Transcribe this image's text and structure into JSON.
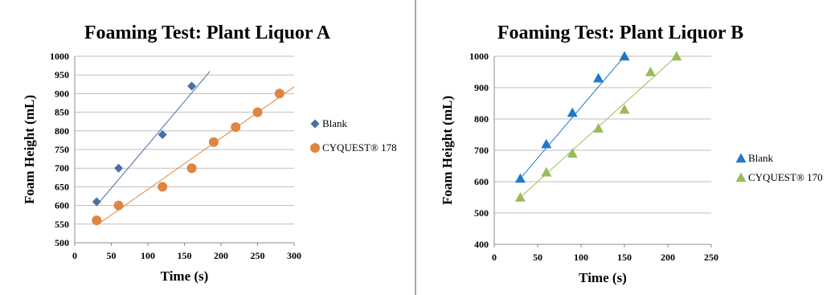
{
  "colors": {
    "blank_a": "#4a6fa5",
    "cyquest_a": "#e0853f",
    "blank_b": "#1f78c8",
    "cyquest_b": "#9bbb59",
    "grid": "#bfbfbf",
    "divider": "#a6a6a6"
  },
  "chart_data": [
    {
      "type": "scatter",
      "title": "Foaming Test: Plant Liquor A",
      "xlabel": "Time  (s)",
      "ylabel": "Foam Height (mL)",
      "xlim": [
        0,
        300
      ],
      "ylim": [
        500,
        1000
      ],
      "x_ticks": [
        0,
        50,
        100,
        150,
        200,
        250,
        300
      ],
      "y_ticks": [
        500,
        550,
        600,
        650,
        700,
        750,
        800,
        850,
        900,
        950,
        1000
      ],
      "grid": "horizontal",
      "legend_position": "right",
      "series": [
        {
          "name": "Blank",
          "marker": "diamond",
          "color": "#4a6fa5",
          "x": [
            30,
            60,
            120,
            160
          ],
          "y": [
            610,
            700,
            790,
            920
          ],
          "trendline": {
            "x": [
              30,
              185
            ],
            "y": [
              600,
              960
            ]
          }
        },
        {
          "name": "CYQUEST® 178",
          "marker": "circle",
          "color": "#e0853f",
          "x": [
            30,
            60,
            120,
            160,
            190,
            220,
            250,
            280
          ],
          "y": [
            560,
            600,
            650,
            700,
            770,
            810,
            850,
            900
          ],
          "trendline": {
            "x": [
              30,
              300
            ],
            "y": [
              547,
              918
            ]
          }
        }
      ]
    },
    {
      "type": "scatter",
      "title": "Foaming Test: Plant Liquor B",
      "xlabel": "Time  (s)",
      "ylabel": "Foam Height (mL)",
      "xlim": [
        0,
        250
      ],
      "ylim": [
        400,
        1000
      ],
      "x_ticks": [
        0,
        50,
        100,
        150,
        200,
        250
      ],
      "y_ticks": [
        400,
        500,
        600,
        700,
        800,
        900,
        1000
      ],
      "grid": "horizontal",
      "legend_position": "right",
      "series": [
        {
          "name": "Blank",
          "marker": "triangle",
          "color": "#1f78c8",
          "x": [
            30,
            60,
            90,
            120,
            150
          ],
          "y": [
            610,
            720,
            820,
            930,
            1000
          ],
          "trendline": {
            "x": [
              30,
              150
            ],
            "y": [
              610,
              1000
            ]
          }
        },
        {
          "name": "CYQUEST® 170",
          "marker": "triangle",
          "color": "#9bbb59",
          "x": [
            30,
            60,
            90,
            120,
            150,
            180,
            210
          ],
          "y": [
            550,
            630,
            690,
            770,
            830,
            950,
            1000
          ],
          "trendline": {
            "x": [
              30,
              210
            ],
            "y": [
              550,
              1000
            ]
          }
        }
      ]
    }
  ]
}
